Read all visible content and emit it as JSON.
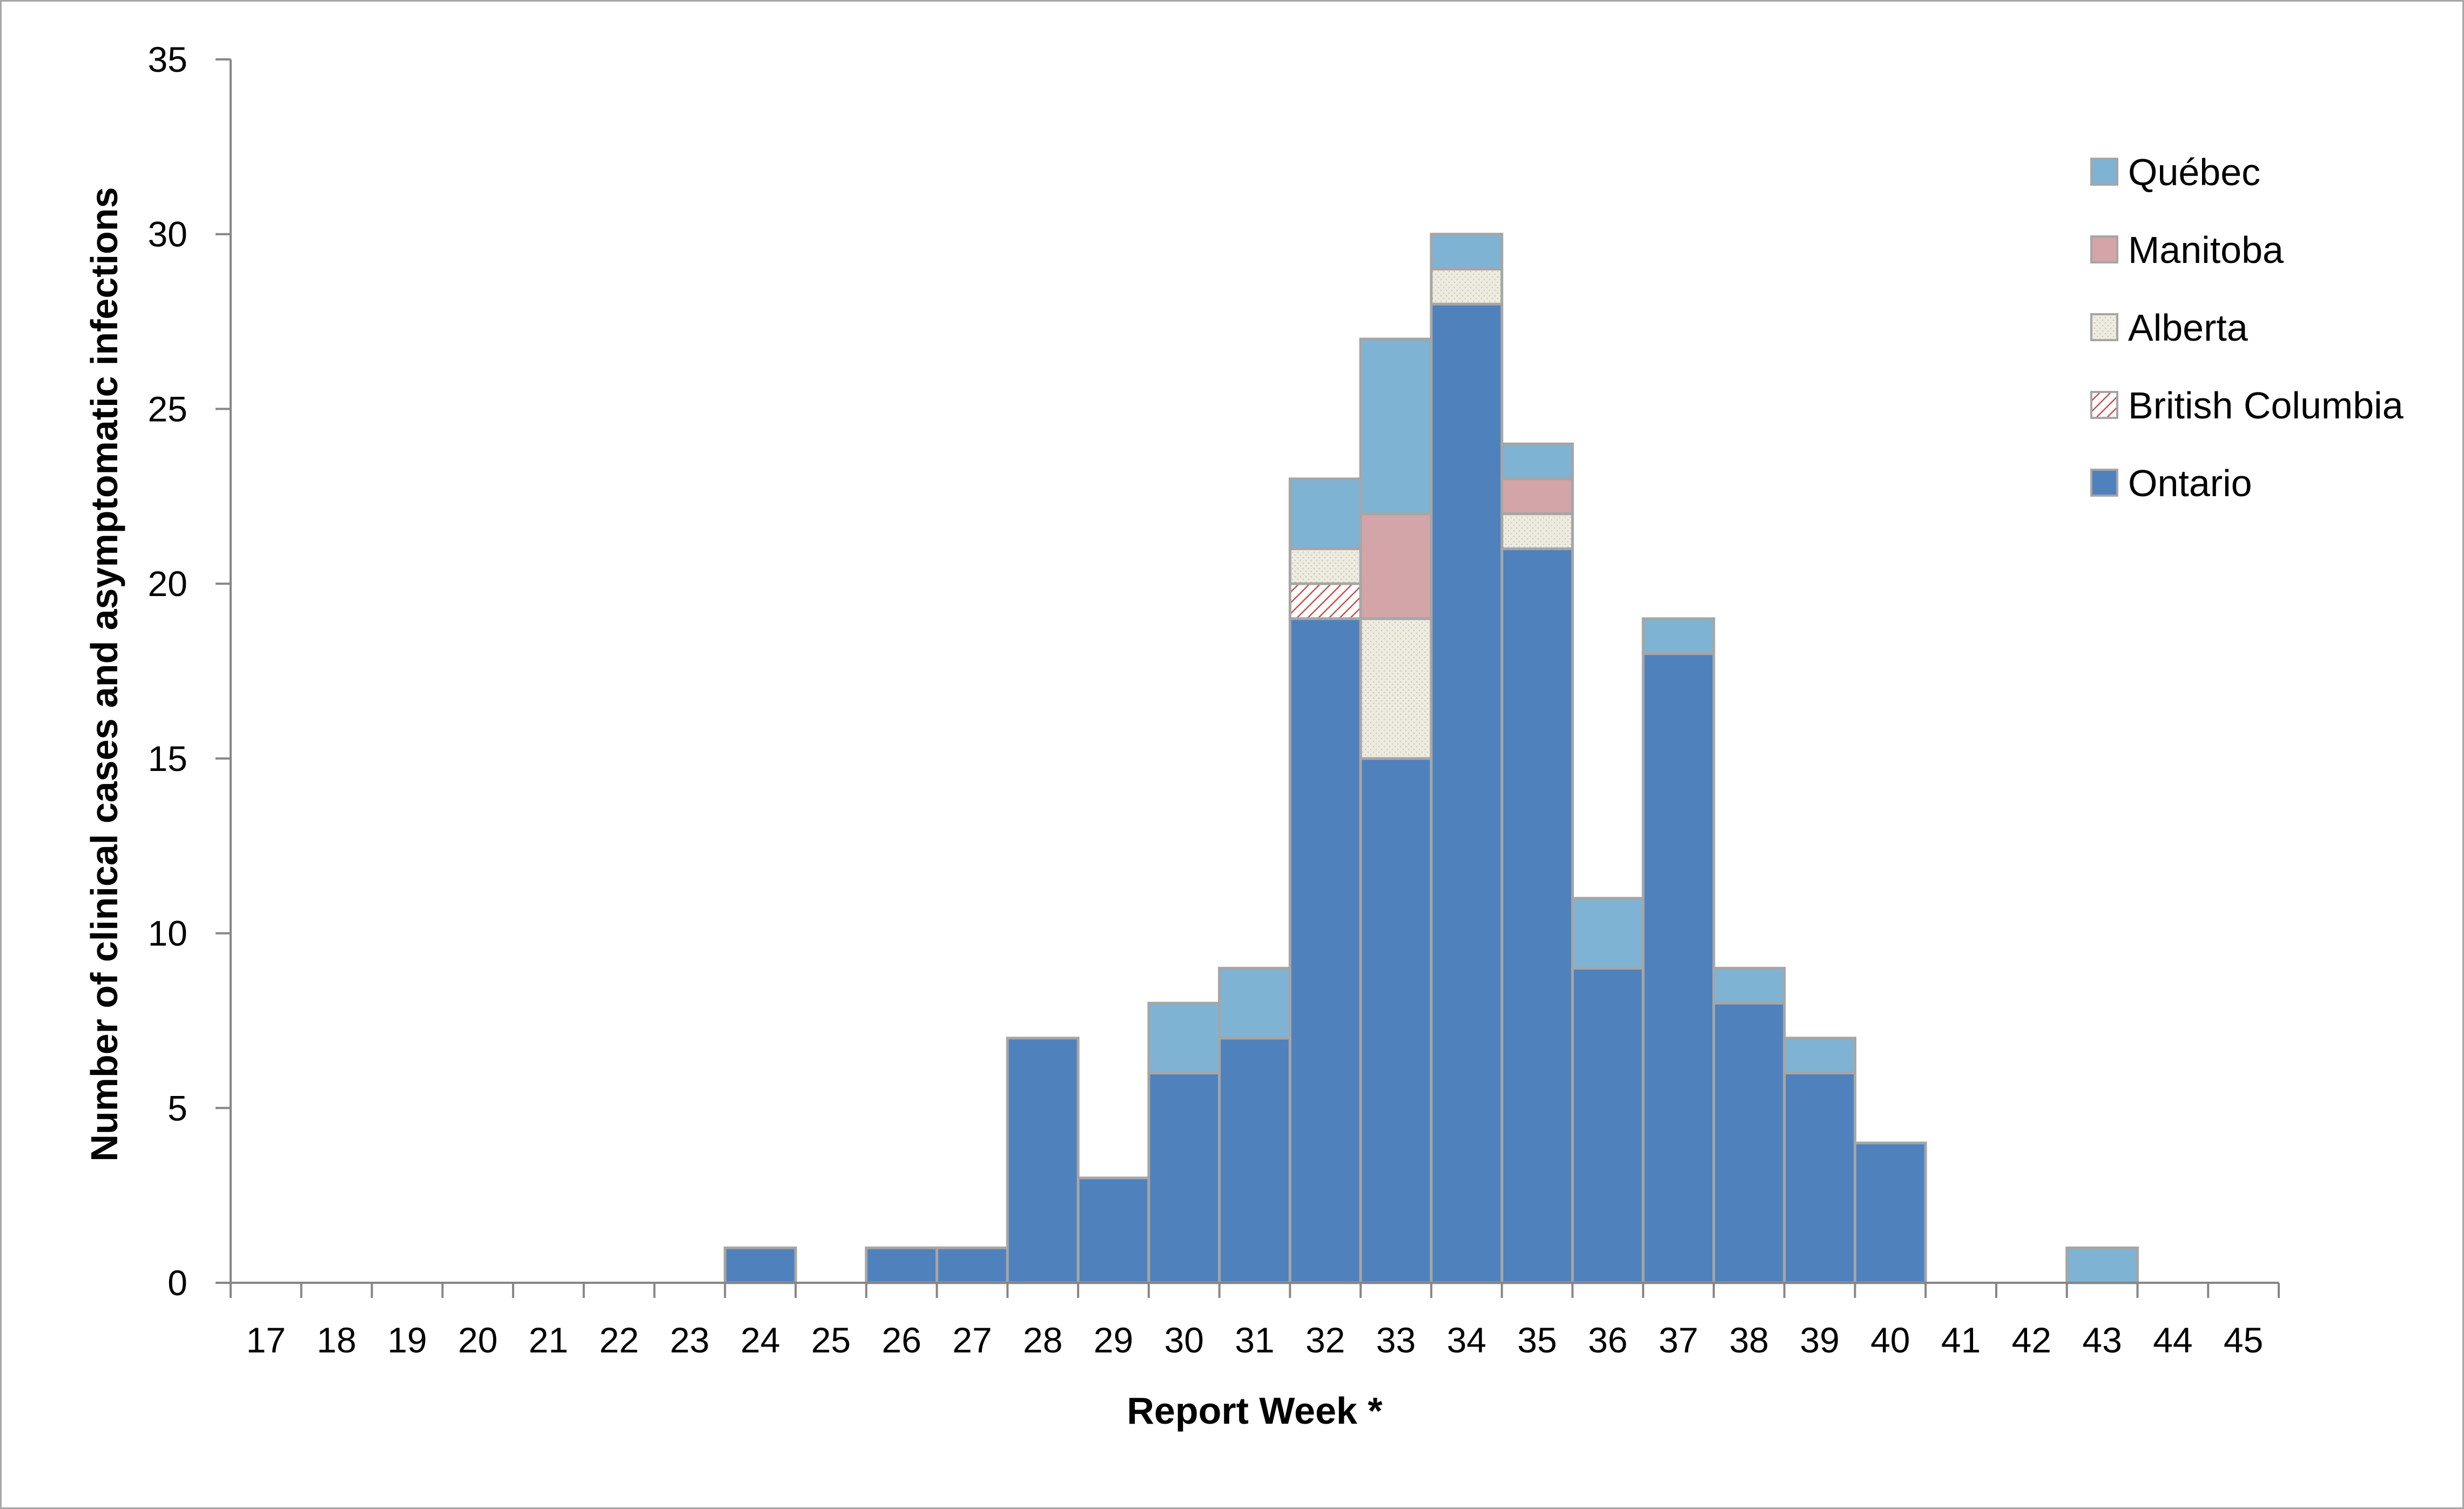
{
  "chart_data": {
    "type": "bar",
    "stacked": true,
    "xlabel": "Report Week *",
    "ylabel": "Number of clinical cases and asymptomatic infections",
    "ylim": [
      0,
      35
    ],
    "yticks": [
      0,
      5,
      10,
      15,
      20,
      25,
      30,
      35
    ],
    "grid": false,
    "legend_position": "right",
    "categories": [
      "17",
      "18",
      "19",
      "20",
      "21",
      "22",
      "23",
      "24",
      "25",
      "26",
      "27",
      "28",
      "29",
      "30",
      "31",
      "32",
      "33",
      "34",
      "35",
      "36",
      "37",
      "38",
      "39",
      "40",
      "41",
      "42",
      "43",
      "44",
      "45"
    ],
    "series": [
      {
        "name": "Ontario",
        "color": "#4f81bd",
        "pattern": "solid",
        "values": [
          0,
          0,
          0,
          0,
          0,
          0,
          0,
          1,
          0,
          1,
          1,
          7,
          3,
          6,
          7,
          19,
          15,
          28,
          21,
          9,
          18,
          8,
          6,
          4,
          0,
          0,
          0,
          0,
          0
        ]
      },
      {
        "name": "British Columbia",
        "color": "#d99694",
        "pattern": "hatch",
        "values": [
          0,
          0,
          0,
          0,
          0,
          0,
          0,
          0,
          0,
          0,
          0,
          0,
          0,
          0,
          0,
          1,
          0,
          0,
          0,
          0,
          0,
          0,
          0,
          0,
          0,
          0,
          0,
          0,
          0
        ]
      },
      {
        "name": "Alberta",
        "color": "#eeece1",
        "pattern": "dotted",
        "values": [
          0,
          0,
          0,
          0,
          0,
          0,
          0,
          0,
          0,
          0,
          0,
          0,
          0,
          0,
          0,
          1,
          4,
          1,
          1,
          0,
          0,
          0,
          0,
          0,
          0,
          0,
          0,
          0,
          0
        ]
      },
      {
        "name": "Manitoba",
        "color": "#d3a5a8",
        "pattern": "solid",
        "values": [
          0,
          0,
          0,
          0,
          0,
          0,
          0,
          0,
          0,
          0,
          0,
          0,
          0,
          0,
          0,
          0,
          3,
          0,
          1,
          0,
          0,
          0,
          0,
          0,
          0,
          0,
          0,
          0,
          0
        ]
      },
      {
        "name": "Québec",
        "color": "#7eb3d3",
        "pattern": "solid",
        "values": [
          0,
          0,
          0,
          0,
          0,
          0,
          0,
          0,
          0,
          0,
          0,
          0,
          0,
          2,
          2,
          2,
          5,
          1,
          1,
          2,
          1,
          1,
          1,
          0,
          0,
          0,
          1,
          0,
          0
        ]
      }
    ],
    "legend_order": [
      "Québec",
      "Manitoba",
      "Alberta",
      "British Columbia",
      "Ontario"
    ]
  }
}
